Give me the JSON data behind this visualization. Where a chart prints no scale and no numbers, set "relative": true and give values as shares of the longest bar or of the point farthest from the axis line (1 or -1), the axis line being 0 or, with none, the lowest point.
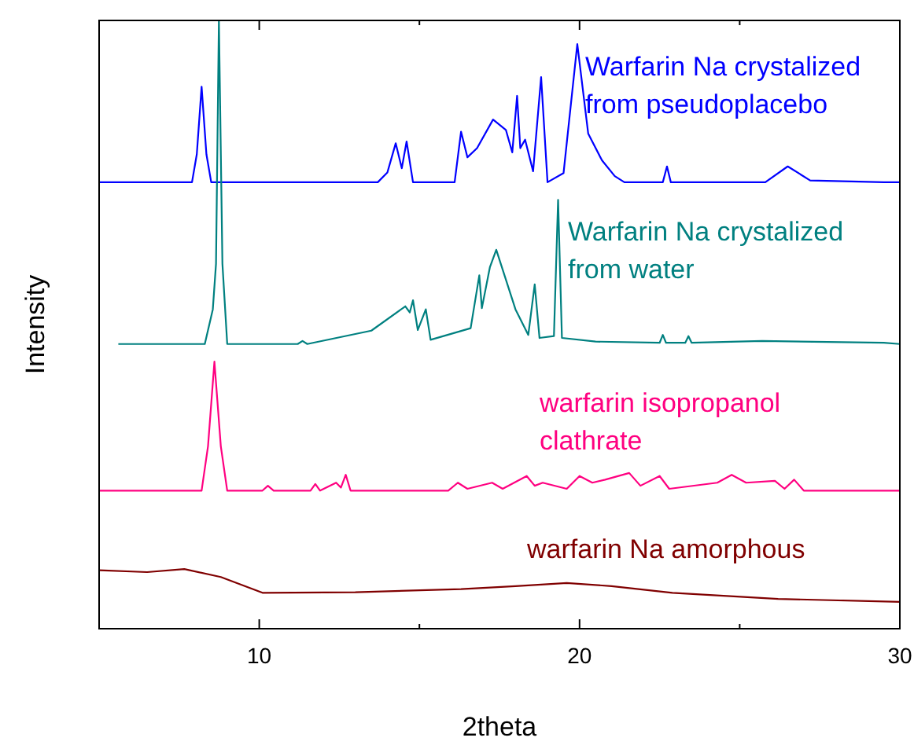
{
  "chart_data": {
    "type": "line",
    "xlabel": "2theta",
    "ylabel": "Intensity",
    "relative": true,
    "xlim": [
      5,
      30
    ],
    "xticks": [
      10,
      {
        "value": 15,
        "label": null
      },
      20,
      {
        "value": 25,
        "label": null
      },
      30
    ],
    "grid": false,
    "legend": false,
    "line_style": "solid",
    "series": [
      {
        "name": "Warfarin Na crystalized from pseudoplacebo",
        "color": "#0000ff",
        "x": [
          5.0,
          7.9,
          8.05,
          8.2,
          8.35,
          8.5,
          13.7,
          14.0,
          14.26,
          14.45,
          14.6,
          14.8,
          16.1,
          16.3,
          16.5,
          16.8,
          17.3,
          17.7,
          17.9,
          18.05,
          18.15,
          18.3,
          18.55,
          18.8,
          19.0,
          19.5,
          19.93,
          20.27,
          20.7,
          21.1,
          21.4,
          22.6,
          22.73,
          22.85,
          25.8,
          26.5,
          27.2,
          29.5,
          30
        ],
        "values": [
          0.734,
          0.734,
          0.78,
          0.891,
          0.78,
          0.734,
          0.734,
          0.75,
          0.798,
          0.757,
          0.801,
          0.734,
          0.734,
          0.817,
          0.775,
          0.79,
          0.837,
          0.82,
          0.783,
          0.876,
          0.79,
          0.804,
          0.752,
          0.907,
          0.734,
          0.749,
          0.961,
          0.814,
          0.77,
          0.744,
          0.734,
          0.734,
          0.76,
          0.734,
          0.734,
          0.76,
          0.737,
          0.734,
          0.734
        ]
      },
      {
        "name": "Warfarin Na crystalized from water",
        "color": "#008080",
        "x": [
          5.6,
          8.3,
          8.55,
          8.65,
          8.74,
          8.85,
          9.0,
          11.2,
          11.35,
          11.5,
          13.5,
          14.56,
          14.7,
          14.8,
          14.95,
          15.2,
          15.35,
          16.6,
          16.87,
          16.95,
          17.2,
          17.4,
          18.0,
          18.4,
          18.6,
          18.75,
          19.2,
          19.33,
          19.45,
          20.5,
          22.5,
          22.6,
          22.7,
          23.3,
          23.4,
          23.5,
          25.7,
          29.5,
          30
        ],
        "values": [
          0.468,
          0.468,
          0.525,
          0.6,
          1.0,
          0.6,
          0.468,
          0.468,
          0.473,
          0.468,
          0.49,
          0.53,
          0.52,
          0.54,
          0.491,
          0.525,
          0.475,
          0.494,
          0.581,
          0.527,
          0.594,
          0.623,
          0.525,
          0.483,
          0.566,
          0.478,
          0.481,
          0.705,
          0.478,
          0.472,
          0.47,
          0.483,
          0.47,
          0.47,
          0.481,
          0.47,
          0.473,
          0.47,
          0.468
        ]
      },
      {
        "name": "warfarin isopropanol clathrate",
        "color": "#ff0080",
        "x": [
          5.0,
          8.2,
          8.4,
          8.6,
          8.8,
          9.0,
          10.1,
          10.27,
          10.45,
          11.6,
          11.75,
          11.9,
          12.4,
          12.55,
          12.7,
          12.85,
          15.9,
          16.2,
          16.5,
          17.27,
          17.6,
          18.35,
          18.6,
          18.85,
          19.6,
          20.0,
          20.4,
          20.8,
          21.55,
          21.9,
          22.5,
          22.8,
          24.3,
          24.75,
          25.2,
          26.1,
          26.4,
          26.7,
          27.0,
          30
        ],
        "values": [
          0.227,
          0.227,
          0.3,
          0.439,
          0.3,
          0.227,
          0.227,
          0.235,
          0.227,
          0.227,
          0.238,
          0.227,
          0.24,
          0.232,
          0.253,
          0.227,
          0.227,
          0.24,
          0.23,
          0.24,
          0.23,
          0.251,
          0.235,
          0.24,
          0.23,
          0.251,
          0.24,
          0.245,
          0.256,
          0.235,
          0.251,
          0.23,
          0.24,
          0.253,
          0.24,
          0.243,
          0.23,
          0.245,
          0.227,
          0.227
        ]
      },
      {
        "name": "warfarin Na amorphous",
        "color": "#800000",
        "x": [
          5.0,
          6.5,
          7.66,
          8.8,
          10.1,
          13.0,
          16.3,
          18.0,
          19.6,
          21.0,
          22.9,
          26.2,
          30
        ],
        "values": [
          0.096,
          0.093,
          0.098,
          0.085,
          0.059,
          0.06,
          0.065,
          0.07,
          0.075,
          0.07,
          0.059,
          0.049,
          0.044
        ]
      }
    ]
  }
}
